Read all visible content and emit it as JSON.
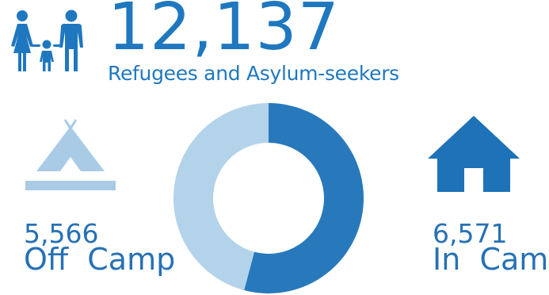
{
  "header": {
    "total": "12,137",
    "subtitle": "Refugees and Asylum-seekers",
    "icon": "family-icon"
  },
  "colors": {
    "accent": "#1f78bf",
    "in_camp": "#2879bc",
    "off_camp": "#b3d3ea"
  },
  "stats": {
    "off_camp": {
      "value": "5,566",
      "label": "Off  Camp",
      "icon": "tent-icon"
    },
    "in_camp": {
      "value": "6,571",
      "label": "In  Camp",
      "icon": "house-icon"
    }
  },
  "chart_data": {
    "type": "pie",
    "categories": [
      "In Camp",
      "Off Camp"
    ],
    "values": [
      6571,
      5566
    ]
  }
}
